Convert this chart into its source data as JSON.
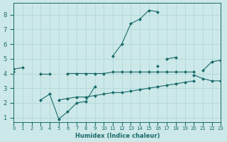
{
  "xlabel": "Humidex (Indice chaleur)",
  "x_values": [
    0,
    1,
    2,
    3,
    4,
    5,
    6,
    7,
    8,
    9,
    10,
    11,
    12,
    13,
    14,
    15,
    16,
    17,
    18,
    19,
    20,
    21,
    22,
    23
  ],
  "line_upper": [
    4.3,
    4.4,
    null,
    null,
    null,
    null,
    null,
    null,
    null,
    null,
    null,
    5.2,
    6.0,
    7.4,
    7.7,
    8.3,
    8.2,
    null,
    null,
    null,
    null,
    null,
    null,
    null
  ],
  "line_mid_top": [
    4.3,
    null,
    null,
    null,
    null,
    null,
    null,
    null,
    null,
    null,
    null,
    null,
    null,
    null,
    null,
    null,
    null,
    5.0,
    5.1,
    null,
    null,
    4.2,
    4.8,
    4.9
  ],
  "line_mid_bot": [
    null,
    null,
    null,
    null,
    null,
    null,
    null,
    null,
    null,
    null,
    null,
    null,
    null,
    null,
    null,
    null,
    4.5,
    null,
    null,
    null,
    3.9,
    3.65,
    3.5,
    3.5
  ],
  "line_flat": [
    4.1,
    null,
    null,
    4.0,
    4.0,
    null,
    4.0,
    4.0,
    4.0,
    4.0,
    4.0,
    4.1,
    4.1,
    4.1,
    4.1,
    4.1,
    4.1,
    4.1,
    4.1,
    4.1,
    4.1,
    null,
    null,
    null
  ],
  "line_low_spike": [
    null,
    null,
    null,
    2.2,
    2.6,
    0.9,
    1.4,
    2.0,
    2.1,
    3.1,
    null,
    null,
    null,
    null,
    null,
    null,
    null,
    null,
    null,
    null,
    null,
    null,
    null,
    null
  ],
  "line_low_flat": [
    null,
    null,
    null,
    null,
    null,
    2.2,
    2.3,
    2.4,
    2.4,
    2.5,
    2.6,
    2.7,
    2.7,
    2.8,
    2.9,
    3.0,
    3.1,
    3.2,
    3.3,
    3.4,
    3.5,
    null,
    null,
    null
  ],
  "bg_color": "#cde8e8",
  "line_color": "#1a6b6b",
  "grid_color": "#b0d8d8",
  "xlim": [
    0,
    23
  ],
  "ylim": [
    0.7,
    8.8
  ],
  "yticks": [
    1,
    2,
    3,
    4,
    5,
    6,
    7,
    8
  ],
  "xtick_labels": [
    "0",
    "1",
    "2",
    "3",
    "4",
    "5",
    "6",
    "7",
    "8",
    "9",
    "10",
    "11",
    "12",
    "13",
    "14",
    "15",
    "16",
    "17",
    "18",
    "19",
    "20",
    "21",
    "22",
    "23"
  ]
}
